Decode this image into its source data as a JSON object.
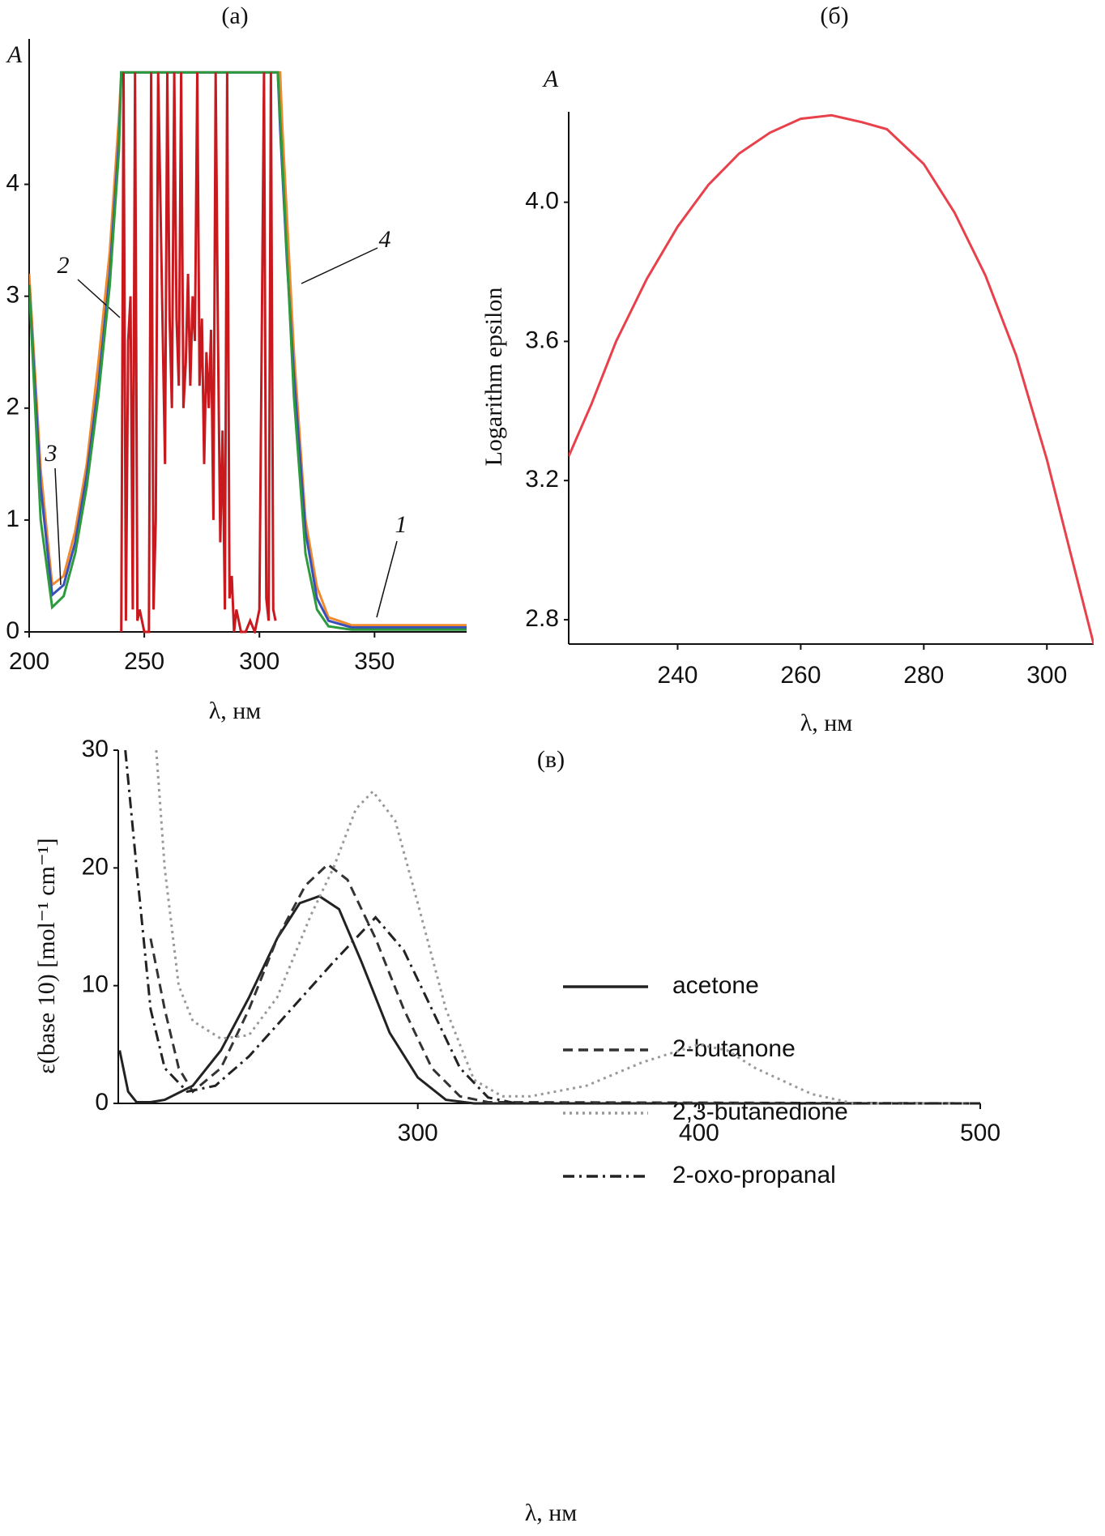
{
  "chart_data": [
    {
      "type": "line",
      "title": "(a)",
      "y_label": "A",
      "x_label": "λ, нм",
      "xlim": [
        200,
        390
      ],
      "xticks": [
        200,
        250,
        300,
        350
      ],
      "ylim": [
        0,
        5.3
      ],
      "yticks": [
        0,
        1,
        2,
        3,
        4
      ],
      "series": [
        {
          "name": "1",
          "color": "#f08a2c",
          "dash": "solid",
          "x": [
            200,
            205,
            210,
            215,
            220,
            225,
            230,
            235,
            239,
            240,
            309,
            310,
            315,
            320,
            325,
            330,
            340,
            390
          ],
          "values": [
            3.2,
            1.45,
            0.42,
            0.5,
            0.9,
            1.5,
            2.4,
            3.4,
            4.6,
            5,
            5,
            4.5,
            2.5,
            1.0,
            0.4,
            0.13,
            0.06,
            0.06
          ]
        },
        {
          "name": "2",
          "color": "#3b4fb8",
          "dash": "solid",
          "x": [
            200,
            205,
            210,
            215,
            220,
            225,
            230,
            235,
            239,
            240,
            308,
            309,
            312,
            315,
            320,
            325,
            330,
            340,
            390
          ],
          "values": [
            3.1,
            1.3,
            0.33,
            0.42,
            0.8,
            1.4,
            2.2,
            3.2,
            4.4,
            5,
            5,
            4.5,
            3.3,
            2.3,
            0.9,
            0.3,
            0.1,
            0.04,
            0.04
          ]
        },
        {
          "name": "3",
          "color": "#2e9a3e",
          "dash": "solid",
          "x": [
            200,
            205,
            210,
            215,
            220,
            225,
            230,
            235,
            239,
            240,
            308,
            310,
            315,
            320,
            325,
            330,
            340,
            390
          ],
          "values": [
            3.1,
            1.0,
            0.22,
            0.32,
            0.7,
            1.3,
            2.1,
            3.1,
            4.3,
            5,
            5,
            4.2,
            2.1,
            0.7,
            0.2,
            0.05,
            0.02,
            0.02
          ]
        },
        {
          "name": "4",
          "color": "#c8191e",
          "dash": "solid",
          "x": [
            240,
            241,
            242,
            243,
            244,
            245,
            246,
            247,
            248,
            250,
            252,
            253,
            254,
            255,
            256,
            258,
            259,
            260,
            261,
            262,
            263,
            264,
            265,
            266,
            267,
            268,
            269,
            270,
            271,
            272,
            273,
            274,
            275,
            276,
            277,
            278,
            279,
            280,
            281,
            282,
            283,
            284,
            285,
            286,
            287,
            288,
            289,
            290,
            292,
            294,
            296,
            298,
            300,
            302,
            303,
            304,
            305,
            306,
            307
          ],
          "values": [
            0,
            5,
            0.1,
            2.6,
            3,
            0.2,
            5,
            0.1,
            0.2,
            0,
            0,
            5,
            0.2,
            1,
            5,
            2.7,
            1.5,
            5,
            2.8,
            2,
            5,
            2.8,
            2.2,
            5,
            2,
            2.4,
            3.2,
            2.2,
            3,
            2.6,
            5,
            2.2,
            2.8,
            1.5,
            2.5,
            2,
            2.7,
            1,
            5,
            2.6,
            0.8,
            1.8,
            0.2,
            5,
            0.3,
            0.5,
            0,
            0.2,
            0,
            0,
            0.1,
            0,
            0.2,
            5,
            0.3,
            0.1,
            5,
            0.2,
            0.1
          ]
        }
      ]
    },
    {
      "type": "line",
      "title": "(б)",
      "y_label": "A",
      "y_axis_title": "Logarithm epsilon",
      "x_label": "λ, нм",
      "xlim": [
        222.3,
        307.6
      ],
      "xticks": [
        240,
        260,
        280,
        300
      ],
      "ylim": [
        2.73,
        4.26
      ],
      "yticks": [
        {
          "value": 2.8,
          "label": "2.8"
        },
        {
          "value": 3.2,
          "label": "3.2"
        },
        {
          "value": 3.6,
          "label": "3.6"
        },
        {
          "value": 4.0,
          "label": "4.0"
        }
      ],
      "series": [
        {
          "color": "#e8414b",
          "dash": "solid",
          "x": [
            222.3,
            226,
            230,
            235,
            240,
            245,
            250,
            255,
            260,
            265,
            270,
            274,
            280,
            285,
            290,
            295,
            300,
            304,
            307.6
          ],
          "values": [
            3.27,
            3.42,
            3.6,
            3.78,
            3.93,
            4.05,
            4.14,
            4.2,
            4.24,
            4.25,
            4.23,
            4.21,
            4.11,
            3.97,
            3.79,
            3.56,
            3.26,
            2.98,
            2.73
          ]
        }
      ]
    },
    {
      "type": "line",
      "title": "(в)",
      "y_axis_title": "ε(base 10) [mol⁻¹ cm⁻¹]",
      "x_label": "λ, нм",
      "xlim": [
        193.5,
        500
      ],
      "xticks": [
        300,
        400,
        500
      ],
      "ylim": [
        0,
        30
      ],
      "yticks": [
        0,
        10,
        20,
        30
      ],
      "series": [
        {
          "name": "acetone",
          "color": "#222222",
          "dash": "solid",
          "x": [
            194,
            197,
            200,
            205,
            210,
            220,
            230,
            240,
            250,
            258,
            265,
            272,
            280,
            290,
            300,
            310,
            320,
            500
          ],
          "values": [
            4.5,
            1,
            0.1,
            0.1,
            0.3,
            1.5,
            4.5,
            9,
            14,
            17,
            17.6,
            16.5,
            12,
            6,
            2.2,
            0.3,
            0,
            0
          ]
        },
        {
          "name": "2-butanone",
          "color": "#333333",
          "dash": "dashed",
          "x": [
            205,
            210,
            215,
            220,
            230,
            240,
            250,
            260,
            268,
            275,
            285,
            295,
            305,
            315,
            325,
            500
          ],
          "values": [
            14,
            8,
            3,
            1,
            3,
            8,
            14,
            18.5,
            20.3,
            19,
            14,
            8,
            3,
            0.6,
            0.1,
            0
          ]
        },
        {
          "name": "2,3-butanedione",
          "color": "#999999",
          "dash": "dotted",
          "x": [
            207,
            210,
            215,
            220,
            230,
            240,
            250,
            262,
            270,
            278,
            284,
            292,
            300,
            310,
            320,
            330,
            340,
            360,
            380,
            400,
            410,
            420,
            440,
            455,
            500
          ],
          "values": [
            30,
            20,
            10,
            7,
            5.5,
            5.8,
            9,
            16,
            20,
            25,
            26.5,
            24,
            17,
            8,
            2,
            0.6,
            0.6,
            1.5,
            3.5,
            5,
            4.5,
            3,
            0.8,
            0,
            0
          ]
        },
        {
          "name": "2-oxo-propanal",
          "color": "#222222",
          "dash": "dashdot",
          "x": [
            196,
            200,
            205,
            210,
            218,
            228,
            240,
            255,
            270,
            285,
            295,
            305,
            315,
            325,
            335,
            500
          ],
          "values": [
            30,
            20,
            8,
            3,
            1,
            1.5,
            4,
            8,
            12,
            15.8,
            13,
            8,
            3,
            0.5,
            0,
            0
          ]
        }
      ]
    }
  ]
}
